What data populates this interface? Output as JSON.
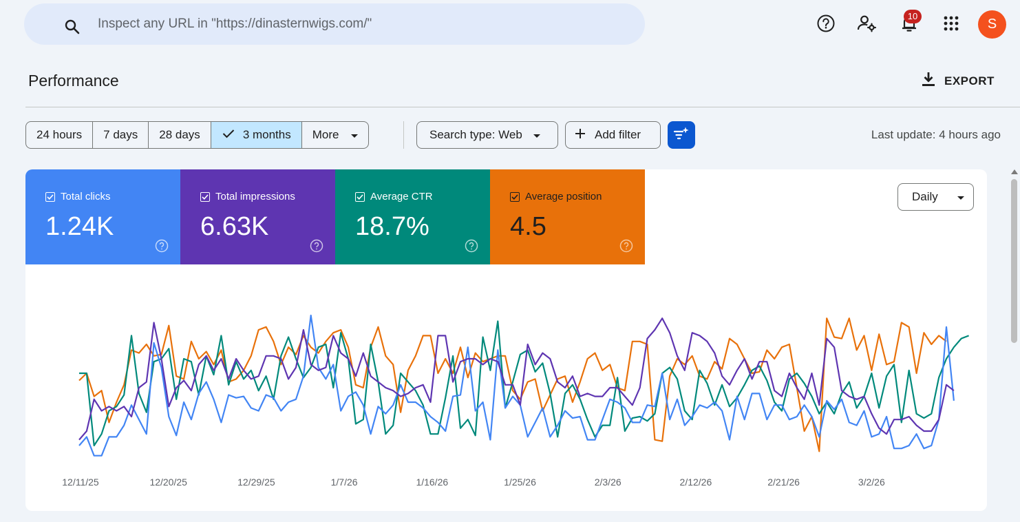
{
  "search": {
    "placeholder": "Inspect any URL in \"https://dinasternwigs.com/\""
  },
  "header": {
    "notification_count": "10",
    "avatar_letter": "S"
  },
  "page": {
    "title": "Performance",
    "export_label": "EXPORT",
    "last_update": "Last update: 4 hours ago"
  },
  "range": {
    "options": [
      "24 hours",
      "7 days",
      "28 days",
      "3 months",
      "More"
    ],
    "selected": "3 months"
  },
  "filters": {
    "search_type": "Search type: Web",
    "add_filter": "Add filter"
  },
  "metrics": [
    {
      "label": "Total clicks",
      "value": "1.24K",
      "color": "#4285f4"
    },
    {
      "label": "Total impressions",
      "value": "6.63K",
      "color": "#5e35b1"
    },
    {
      "label": "Average CTR",
      "value": "18.7%",
      "color": "#00897b"
    },
    {
      "label": "Average position",
      "value": "4.5",
      "color": "#e8710a"
    }
  ],
  "granularity": "Daily",
  "chart_data": {
    "type": "line",
    "x_labels": [
      "12/11/25",
      "12/20/25",
      "12/29/25",
      "1/7/26",
      "1/16/26",
      "1/25/26",
      "2/3/26",
      "2/12/26",
      "2/21/26",
      "3/2/26"
    ],
    "label_colors": {
      "clicks": "#4285f4",
      "impressions": "#5e35b1",
      "ctr": "#00897b",
      "position": "#e8710a"
    },
    "series": [
      {
        "key": "position",
        "color": "#e8710a",
        "values": [
          0.55,
          0.6,
          0.44,
          0.48,
          0.26,
          0.4,
          0.52,
          0.76,
          0.74,
          0.8,
          0.72,
          0.73,
          0.93,
          0.58,
          0.56,
          0.82,
          0.7,
          0.75,
          0.66,
          0.76,
          0.54,
          0.56,
          0.62,
          0.72,
          0.9,
          0.92,
          0.82,
          0.66,
          0.78,
          0.73,
          0.86,
          0.78,
          0.74,
          0.82,
          0.88,
          0.9,
          0.78,
          0.52,
          0.5,
          0.78,
          0.92,
          0.72,
          0.66,
          0.33,
          0.62,
          0.72,
          0.86,
          0.86,
          0.6,
          0.7,
          0.6,
          0.78,
          0.57,
          0.74,
          0.68,
          0.7,
          0.72,
          0.72,
          0.48,
          0.42,
          0.54,
          0.56,
          0.34,
          0.45,
          0.56,
          0.58,
          0.4,
          0.54,
          0.7,
          0.74,
          0.62,
          0.66,
          0.5,
          0.48,
          0.82,
          0.82,
          0.8,
          0.14,
          0.13,
          0.58,
          0.7,
          0.66,
          0.72,
          0.58,
          0.56,
          0.68,
          0.63,
          0.84,
          0.8,
          0.7,
          0.6,
          0.61,
          0.76,
          0.7,
          0.78,
          0.8,
          0.5,
          0.2,
          0.3,
          0.06,
          0.98,
          0.85,
          0.84,
          0.98,
          0.76,
          0.86,
          0.62,
          0.87,
          0.66,
          0.68,
          0.95,
          0.92,
          0.6,
          0.88,
          0.8,
          0.86,
          0.82
        ]
      },
      {
        "key": "ctr",
        "color": "#00897b",
        "values": [
          0.6,
          0.6,
          0.1,
          0.18,
          0.34,
          0.37,
          0.45,
          0.86,
          0.46,
          0.33,
          0.68,
          0.7,
          0.77,
          0.42,
          0.7,
          0.68,
          0.45,
          0.72,
          0.59,
          0.86,
          0.52,
          0.68,
          0.56,
          0.62,
          0.48,
          0.58,
          0.42,
          0.72,
          0.85,
          0.7,
          0.57,
          0.64,
          0.78,
          0.8,
          0.5,
          0.88,
          0.7,
          0.25,
          0.28,
          0.8,
          0.54,
          0.18,
          0.24,
          0.6,
          0.54,
          0.48,
          0.38,
          0.18,
          0.18,
          0.43,
          0.72,
          0.22,
          0.28,
          0.17,
          0.85,
          0.62,
          0.96,
          0.36,
          0.54,
          0.73,
          0.76,
          0.61,
          0.67,
          0.46,
          0.16,
          0.46,
          0.52,
          0.42,
          0.28,
          0.16,
          0.24,
          0.24,
          0.57,
          0.2,
          0.29,
          0.3,
          0.27,
          0.32,
          0.6,
          0.64,
          0.56,
          0.34,
          0.28,
          0.62,
          0.53,
          0.38,
          0.52,
          0.37,
          0.43,
          0.52,
          0.62,
          0.65,
          0.55,
          0.4,
          0.34,
          0.56,
          0.6,
          0.53,
          0.44,
          0.32,
          0.4,
          0.32,
          0.46,
          0.54,
          0.36,
          0.44,
          0.6,
          0.36,
          0.58,
          0.66,
          0.26,
          0.62,
          0.32,
          0.29,
          0.32,
          0.57,
          0.7,
          0.78,
          0.84,
          0.86
        ]
      },
      {
        "key": "clicks",
        "color": "#4285f4",
        "values": [
          0.1,
          0.16,
          0.03,
          0.03,
          0.16,
          0.16,
          0.24,
          0.38,
          0.28,
          0.18,
          0.81,
          0.64,
          0.3,
          0.17,
          0.4,
          0.28,
          0.46,
          0.54,
          0.42,
          0.26,
          0.45,
          0.43,
          0.44,
          0.36,
          0.34,
          0.45,
          0.43,
          0.34,
          0.4,
          0.42,
          0.58,
          1.0,
          0.64,
          0.56,
          0.66,
          0.34,
          0.44,
          0.47,
          0.38,
          0.18,
          0.37,
          0.32,
          0.38,
          0.52,
          0.4,
          0.4,
          0.36,
          0.3,
          0.26,
          0.2,
          0.44,
          0.45,
          0.78,
          0.34,
          0.4,
          0.14,
          0.76,
          0.36,
          0.44,
          0.38,
          0.16,
          0.26,
          0.36,
          0.16,
          0.24,
          0.34,
          0.29,
          0.3,
          0.14,
          0.14,
          0.28,
          0.42,
          0.4,
          0.36,
          0.26,
          0.26,
          0.38,
          0.37,
          0.6,
          0.28,
          0.42,
          0.24,
          0.3,
          0.38,
          0.36,
          0.4,
          0.34,
          0.14,
          0.44,
          0.28,
          0.46,
          0.46,
          0.28,
          0.38,
          0.38,
          0.28,
          0.3,
          0.38,
          0.3,
          0.16,
          0.41,
          0.35,
          0.42,
          0.26,
          0.24,
          0.34,
          0.16,
          0.18,
          0.3,
          0.08,
          0.08,
          0.1,
          0.18,
          0.08,
          0.1,
          0.28,
          0.92,
          0.41
        ]
      },
      {
        "key": "impressions",
        "color": "#5e35b1",
        "values": [
          0.14,
          0.2,
          0.42,
          0.34,
          0.37,
          0.34,
          0.37,
          0.3,
          0.5,
          0.54,
          0.95,
          0.7,
          0.37,
          0.5,
          0.55,
          0.48,
          0.66,
          0.72,
          0.62,
          0.7,
          0.56,
          0.7,
          0.62,
          0.56,
          0.58,
          0.72,
          0.72,
          0.7,
          0.56,
          0.64,
          0.9,
          0.66,
          0.62,
          0.64,
          0.86,
          0.74,
          0.7,
          0.58,
          0.74,
          0.58,
          0.54,
          0.5,
          0.48,
          0.44,
          0.46,
          0.5,
          0.52,
          0.4,
          0.86,
          0.86,
          0.54,
          0.68,
          0.7,
          0.7,
          0.66,
          0.7,
          0.68,
          0.52,
          0.52,
          0.38,
          0.8,
          0.66,
          0.74,
          0.7,
          0.54,
          0.5,
          0.58,
          0.44,
          0.46,
          0.44,
          0.44,
          0.5,
          0.5,
          0.44,
          0.38,
          0.5,
          0.84,
          0.9,
          0.98,
          0.88,
          0.72,
          0.62,
          0.88,
          0.86,
          0.82,
          0.74,
          0.58,
          0.52,
          0.62,
          0.7,
          0.56,
          0.68,
          0.68,
          0.48,
          0.44,
          0.6,
          0.5,
          0.42,
          0.6,
          0.38,
          0.84,
          0.78,
          0.48,
          0.44,
          0.42,
          0.44,
          0.32,
          0.22,
          0.18,
          0.28,
          0.28,
          0.3,
          0.24,
          0.2,
          0.2,
          0.28,
          0.52,
          0.48
        ]
      }
    ]
  }
}
